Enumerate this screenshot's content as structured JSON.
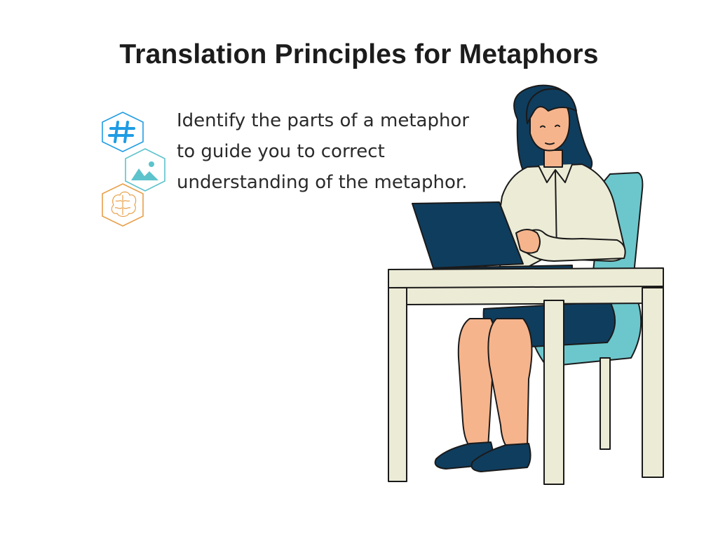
{
  "slide": {
    "title": "Translation Principles for Metaphors",
    "body": "Identify the parts of a metaphor to guide you to correct understanding of the metaphor."
  },
  "icons": {
    "hashtag": "hashtag-icon",
    "image": "image-icon",
    "brain": "brain-icon"
  },
  "colors": {
    "title": "#1c1c1c",
    "text": "#2a2a2a",
    "hex_blue": "#1f9ce4",
    "hex_teal": "#5cc3cc",
    "hex_orange": "#e8a04a",
    "navy": "#0f3d5e",
    "chair": "#6cc7cc",
    "desk": "#ecebd6",
    "skin": "#f6b48c"
  }
}
